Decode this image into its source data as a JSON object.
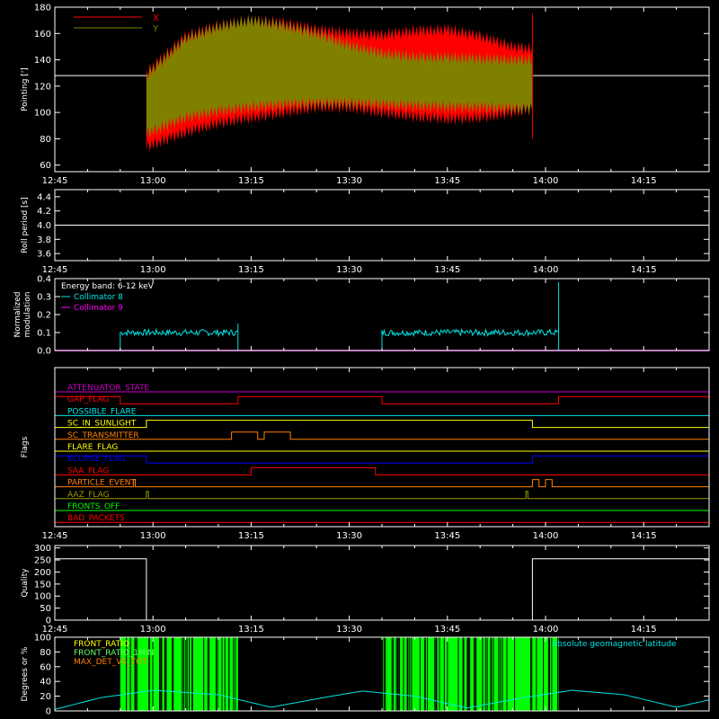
{
  "colors": {
    "bg": "#000000",
    "axis": "#ffffff",
    "x_series": "#ff0000",
    "y_series": "#808000",
    "coll8": "#00e5e5",
    "coll9": "#ff00ff",
    "front": "#00ff00",
    "magenta": "#cc00cc",
    "red": "#ff0000",
    "cyan": "#00e5e5",
    "yellow": "#ffff00",
    "orange": "#ff8000",
    "blue": "#0000ff",
    "olive": "#999900",
    "green": "#00ff00",
    "lightgreen": "#66ff66"
  },
  "time_axis": {
    "start": "12:45",
    "end": "14:25",
    "ticks": [
      "12:45",
      "13:00",
      "13:15",
      "13:30",
      "13:45",
      "14:00",
      "14:15"
    ],
    "minor_step_min": 5
  },
  "chart_data": [
    {
      "type": "area",
      "ylabel": "Pointing [']",
      "ylim": [
        55,
        180
      ],
      "yticks": [
        "60",
        "80",
        "100",
        "120",
        "140",
        "160",
        "180"
      ],
      "legend": [
        {
          "name": "X",
          "color": "#ff0000"
        },
        {
          "name": "Y",
          "color": "#808000"
        }
      ],
      "baseline": 128,
      "data_window": [
        "12:59",
        "13:58"
      ],
      "series": [
        {
          "name": "X",
          "upper_t": [
            "12:59",
            "13:05",
            "13:10",
            "13:15",
            "13:20",
            "13:25",
            "13:30",
            "13:35",
            "13:40",
            "13:45",
            "13:50",
            "13:55",
            "13:58"
          ],
          "upper_v": [
            130,
            158,
            166,
            170,
            168,
            163,
            160,
            159,
            162,
            163,
            158,
            150,
            148
          ],
          "lower_t": [
            "12:59",
            "13:05",
            "13:10",
            "13:15",
            "13:20",
            "13:25",
            "13:30",
            "13:35",
            "13:40",
            "13:45",
            "13:50",
            "13:55",
            "13:58"
          ],
          "lower_v": [
            74,
            85,
            92,
            96,
            100,
            104,
            104,
            100,
            97,
            95,
            96,
            100,
            103
          ]
        },
        {
          "name": "Y",
          "upper_t": [
            "12:59",
            "13:05",
            "13:10",
            "13:15",
            "13:20",
            "13:25",
            "13:30",
            "13:35",
            "13:40",
            "13:45",
            "13:50",
            "13:55",
            "13:58"
          ],
          "upper_v": [
            128,
            156,
            165,
            170,
            166,
            160,
            151,
            145,
            142,
            142,
            141,
            140,
            140
          ],
          "lower_t": [
            "12:59",
            "13:05",
            "13:10",
            "13:15",
            "13:20",
            "13:25",
            "13:30",
            "13:35",
            "13:40",
            "13:45",
            "13:50",
            "13:55",
            "13:58"
          ],
          "lower_v": [
            84,
            96,
            101,
            104,
            106,
            107,
            107,
            106,
            105,
            104,
            104,
            103,
            103
          ]
        }
      ]
    },
    {
      "type": "line",
      "ylabel": "Roll period [s]",
      "ylim": [
        3.5,
        4.5
      ],
      "yticks": [
        "3.6",
        "3.8",
        "4.0",
        "4.2",
        "4.4"
      ],
      "series": [
        {
          "t": [
            "12:45",
            "14:25"
          ],
          "v": [
            4.0,
            4.0
          ]
        }
      ]
    },
    {
      "type": "line",
      "ylabel": "Normalized modulation",
      "ylabel_lines": [
        "Normalized",
        "modulation"
      ],
      "ylim": [
        0,
        0.4
      ],
      "yticks": [
        "0.0",
        "0.1",
        "0.2",
        "0.3",
        "0.4"
      ],
      "legend": [
        {
          "name": "Energy band: 6-12 keV",
          "color": "#ffffff"
        },
        {
          "name": "Collimator 8",
          "color": "#00e5e5"
        },
        {
          "name": "Collimator 9",
          "color": "#ff00ff"
        }
      ],
      "coll9_level": 0.0,
      "segments": [
        {
          "start": "12:55",
          "end": "13:13",
          "level": 0.1,
          "spike": 0.15
        },
        {
          "start": "13:35",
          "end": "14:02",
          "level": 0.1,
          "spike": 0.38
        }
      ]
    },
    {
      "type": "table",
      "ylabel": "Flags",
      "flags": [
        {
          "name": "ATTENUATOR_STATE",
          "color": "#cc00cc",
          "high": []
        },
        {
          "name": "GAP_FLAG",
          "color": "#ff0000",
          "high": [
            [
              "12:45",
              "12:55"
            ],
            [
              "13:13",
              "13:35"
            ],
            [
              "14:02",
              "14:25"
            ]
          ]
        },
        {
          "name": "POSSIBLE_FLARE",
          "color": "#00e5e5",
          "high": []
        },
        {
          "name": "SC_IN_SUNLIGHT",
          "color": "#ffff00",
          "high": [
            [
              "12:59",
              "13:58"
            ]
          ]
        },
        {
          "name": "SC_TRANSMITTER",
          "color": "#ff8000",
          "high": [
            [
              "13:12",
              "13:16"
            ],
            [
              "13:17",
              "13:21"
            ]
          ]
        },
        {
          "name": "FLARE_FLAG",
          "color": "#ffff00",
          "high": []
        },
        {
          "name": "ECLIPSE_FLAG",
          "color": "#0000ff",
          "high": [
            [
              "12:45",
              "12:59"
            ],
            [
              "13:58",
              "14:25"
            ]
          ]
        },
        {
          "name": "SAA_FLAG",
          "color": "#ff0000",
          "high": [
            [
              "13:15",
              "13:34"
            ]
          ]
        },
        {
          "name": "PARTICLE_EVENT",
          "color": "#ff8000",
          "high": [
            [
              "12:57",
              "12:57.3"
            ],
            [
              "13:58",
              "13:59"
            ],
            [
              "14:00",
              "14:01"
            ]
          ]
        },
        {
          "name": "AAZ_FLAG",
          "color": "#999900",
          "high": [
            [
              "12:59",
              "12:59.3"
            ],
            [
              "13:57",
              "13:57.3"
            ]
          ]
        },
        {
          "name": "FRONTS_OFF",
          "color": "#00ff00",
          "high": []
        },
        {
          "name": "BAD_PACKETS",
          "color": "#ff0000",
          "high": []
        }
      ]
    },
    {
      "type": "line",
      "ylabel": "Quality",
      "ylim": [
        0,
        310
      ],
      "yticks": [
        "0",
        "50",
        "100",
        "150",
        "200",
        "250",
        "300"
      ],
      "series": [
        {
          "t": [
            "12:45",
            "12:59",
            "12:59",
            "13:58",
            "13:58",
            "14:25"
          ],
          "v": [
            255,
            255,
            0,
            0,
            255,
            255
          ]
        }
      ]
    },
    {
      "type": "bar",
      "ylabel": "Degrees or %",
      "ylim": [
        0,
        100
      ],
      "yticks": [
        "0",
        "20",
        "40",
        "60",
        "80",
        "100"
      ],
      "legend": [
        {
          "name": "FRONT_RATIO",
          "color": "#ffff00"
        },
        {
          "name": "FRONT_RATIO_1MIN",
          "color": "#66ff66"
        },
        {
          "name": "MAX_DET_VS_TOT",
          "color": "#ff8000"
        }
      ],
      "legend_right": {
        "name": "Absolute geomagnetic latitude",
        "color": "#00e5e5"
      },
      "front_windows": [
        [
          "12:55",
          "13:13"
        ],
        [
          "13:35",
          "14:02"
        ]
      ],
      "latitude_t": [
        "12:45",
        "12:52",
        "13:00",
        "13:10",
        "13:18",
        "13:26",
        "13:32",
        "13:40",
        "13:48",
        "13:56",
        "14:04",
        "14:12",
        "14:20",
        "14:25"
      ],
      "latitude_v": [
        2,
        18,
        28,
        22,
        5,
        18,
        27,
        20,
        4,
        17,
        28,
        22,
        5,
        15
      ]
    }
  ]
}
